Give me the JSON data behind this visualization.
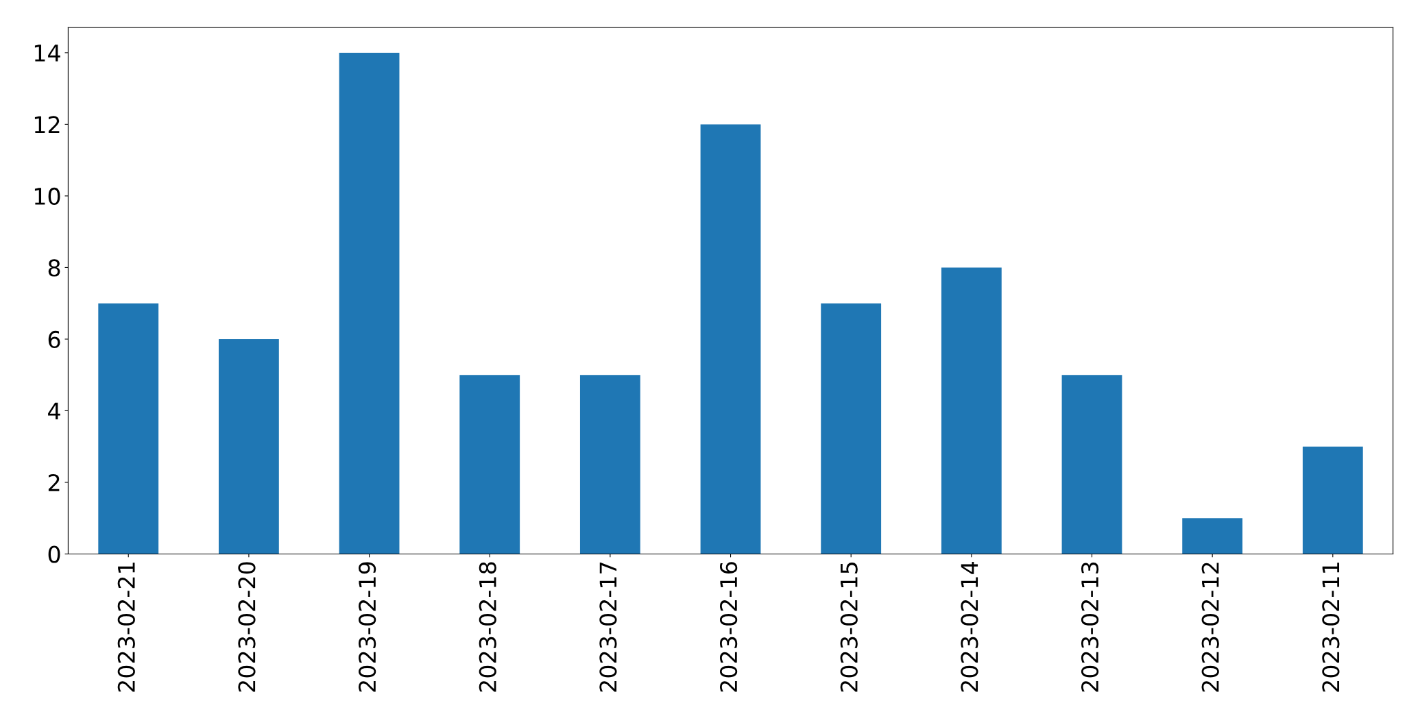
{
  "chart_data": {
    "type": "bar",
    "categories": [
      "2023-02-21",
      "2023-02-20",
      "2023-02-19",
      "2023-02-18",
      "2023-02-17",
      "2023-02-16",
      "2023-02-15",
      "2023-02-14",
      "2023-02-13",
      "2023-02-12",
      "2023-02-11"
    ],
    "values": [
      7,
      6,
      14,
      5,
      5,
      12,
      7,
      8,
      5,
      1,
      3
    ],
    "color": "#1f77b4",
    "ylim": [
      0,
      14.7
    ],
    "yticks": [
      0,
      2,
      4,
      6,
      8,
      10,
      12,
      14
    ],
    "grid": false
  }
}
